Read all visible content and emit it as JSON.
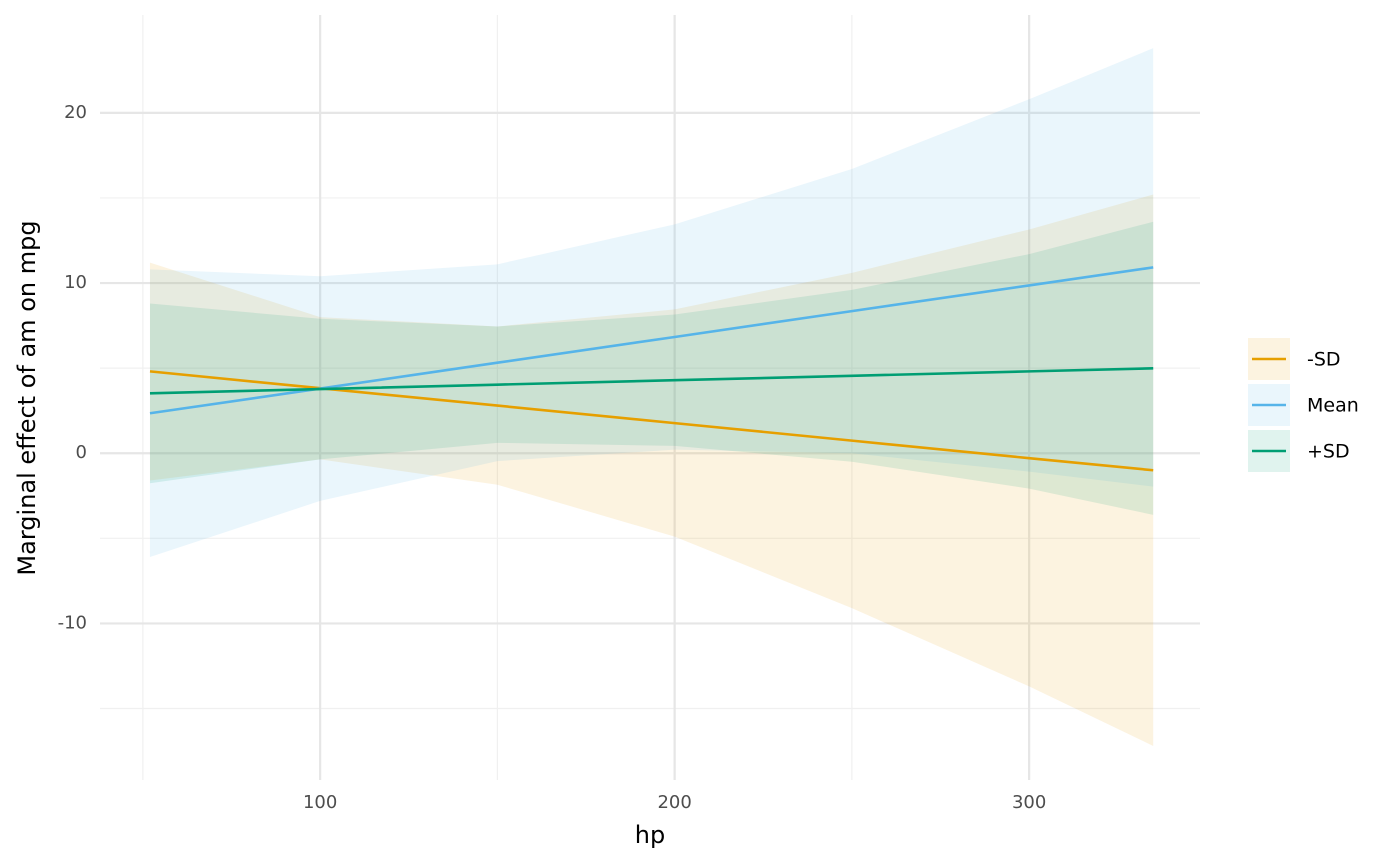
{
  "chart_data": {
    "type": "line",
    "x_label": "hp",
    "y_label": "Marginal effect of am on mpg",
    "x": [
      52,
      100,
      150,
      200,
      250,
      300,
      335
    ],
    "series": [
      {
        "name": "-SD",
        "color": "#E69F00",
        "values": [
          4.81,
          3.82,
          2.8,
          1.77,
          0.74,
          -0.29,
          -1.0
        ],
        "lower": [
          -1.6,
          -0.36,
          -1.85,
          -4.9,
          -9.1,
          -13.7,
          -17.2
        ],
        "upper": [
          11.2,
          8.0,
          7.45,
          8.45,
          10.6,
          13.15,
          15.2
        ]
      },
      {
        "name": "Mean",
        "color": "#56B4E9",
        "values": [
          2.35,
          3.8,
          5.32,
          6.83,
          8.35,
          9.86,
          10.92
        ],
        "lower": [
          -6.1,
          -2.8,
          -0.46,
          0.21,
          0.0,
          -1.08,
          -1.96
        ],
        "upper": [
          10.8,
          10.4,
          11.1,
          13.45,
          16.7,
          20.8,
          23.8
        ]
      },
      {
        "name": "+SD",
        "color": "#009E73",
        "values": [
          3.52,
          3.77,
          4.03,
          4.29,
          4.55,
          4.81,
          4.99
        ],
        "lower": [
          -1.76,
          -0.36,
          0.61,
          0.43,
          -0.5,
          -2.08,
          -3.62
        ],
        "upper": [
          8.8,
          7.9,
          7.45,
          8.15,
          9.6,
          11.7,
          13.6
        ]
      }
    ],
    "band_opacity": 0.12,
    "xlim": [
      37.9,
      348.2
    ],
    "ylim": [
      -19.2,
      25.75
    ],
    "xticks": [
      100,
      200,
      300
    ],
    "yticks": [
      -10,
      0,
      10,
      20
    ],
    "x_minor_ticks": [
      50,
      150,
      250
    ],
    "y_minor_ticks": [
      -15,
      -5,
      5,
      15
    ],
    "grid": true,
    "legend": "right"
  }
}
